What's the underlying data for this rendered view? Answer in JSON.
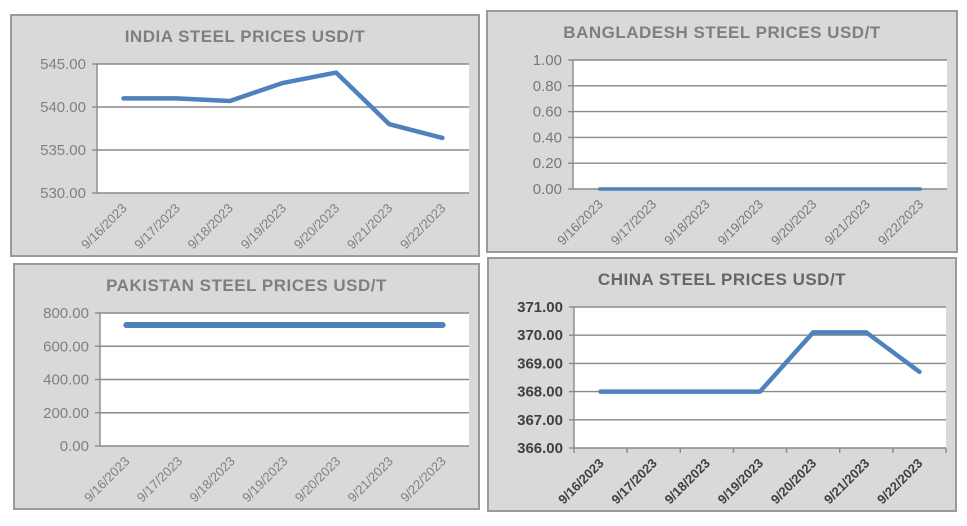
{
  "window": {
    "background_color": "#ffffff",
    "panel_background_color": "#d9d9d9",
    "panel_border_color": "#9a9a9a"
  },
  "chart_data": [
    {
      "id": "india",
      "type": "line",
      "title": "INDIA STEEL PRICES USD/T",
      "xlabel": "",
      "ylabel": "",
      "legend": false,
      "grid": true,
      "categories": [
        "9/16/2023",
        "9/17/2023",
        "9/18/2023",
        "9/19/2023",
        "9/20/2023",
        "9/21/2023",
        "9/22/2023"
      ],
      "values": [
        541.0,
        541.0,
        540.7,
        542.8,
        544.0,
        538.0,
        536.4
      ],
      "ylim": [
        530,
        545
      ],
      "yticks": [
        530,
        535,
        540,
        545
      ],
      "ytick_labels": [
        "530.00",
        "535.00",
        "540.00",
        "545.00"
      ],
      "line_color": "#4f81bd",
      "grid_color": "#8a8a8a",
      "title_color": "#7f7f7f",
      "axis_label_color": "#808080",
      "axis_label_weight": "normal",
      "line_width": 4.5,
      "x_axis_boundary_ticks": false
    },
    {
      "id": "bangladesh",
      "type": "line",
      "title": "BANGLADESH STEEL PRICES USD/T",
      "xlabel": "",
      "ylabel": "",
      "legend": false,
      "grid": true,
      "categories": [
        "9/16/2023",
        "9/17/2023",
        "9/18/2023",
        "9/19/2023",
        "9/20/2023",
        "9/21/2023",
        "9/22/2023"
      ],
      "values": [
        0.0,
        0.0,
        0.0,
        0.0,
        0.0,
        0.0,
        0.0
      ],
      "ylim": [
        0,
        1
      ],
      "yticks": [
        0,
        0.2,
        0.4,
        0.6,
        0.8,
        1.0
      ],
      "ytick_labels": [
        "0.00",
        "0.20",
        "0.40",
        "0.60",
        "0.80",
        "1.00"
      ],
      "line_color": "#4f81bd",
      "grid_color": "#8a8a8a",
      "title_color": "#7f7f7f",
      "axis_label_color": "#787878",
      "axis_label_weight": "normal",
      "line_width": 3.5,
      "x_axis_boundary_ticks": false
    },
    {
      "id": "pakistan",
      "type": "line",
      "title": "PAKISTAN STEEL PRICES USD/T",
      "xlabel": "",
      "ylabel": "",
      "legend": false,
      "grid": true,
      "categories": [
        "9/16/2023",
        "9/17/2023",
        "9/18/2023",
        "9/19/2023",
        "9/20/2023",
        "9/21/2023",
        "9/22/2023"
      ],
      "values": [
        728,
        728,
        728,
        728,
        728,
        728,
        728
      ],
      "ylim": [
        0,
        800
      ],
      "yticks": [
        0,
        200,
        400,
        600,
        800
      ],
      "ytick_labels": [
        "0.00",
        "200.00",
        "400.00",
        "600.00",
        "800.00"
      ],
      "line_color": "#4f81bd",
      "grid_color": "#8a8a8a",
      "title_color": "#7f7f7f",
      "axis_label_color": "#808080",
      "axis_label_weight": "normal",
      "line_width": 6,
      "x_axis_boundary_ticks": false
    },
    {
      "id": "china",
      "type": "line",
      "title": "CHINA STEEL PRICES USD/T",
      "xlabel": "",
      "ylabel": "",
      "legend": false,
      "grid": true,
      "categories": [
        "9/16/2023",
        "9/17/2023",
        "9/18/2023",
        "9/19/2023",
        "9/20/2023",
        "9/21/2023",
        "9/22/2023"
      ],
      "values": [
        368.0,
        368.0,
        368.0,
        368.0,
        370.1,
        370.1,
        368.7
      ],
      "ylim": [
        366,
        371
      ],
      "yticks": [
        366,
        367,
        368,
        369,
        370,
        371
      ],
      "ytick_labels": [
        "366.00",
        "367.00",
        "368.00",
        "369.00",
        "370.00",
        "371.00"
      ],
      "line_color": "#4f81bd",
      "grid_color": "#8a8a8a",
      "title_color": "#666666",
      "axis_label_color": "#404040",
      "axis_label_weight": "bold",
      "line_width": 4.5,
      "x_axis_boundary_ticks": true
    }
  ]
}
